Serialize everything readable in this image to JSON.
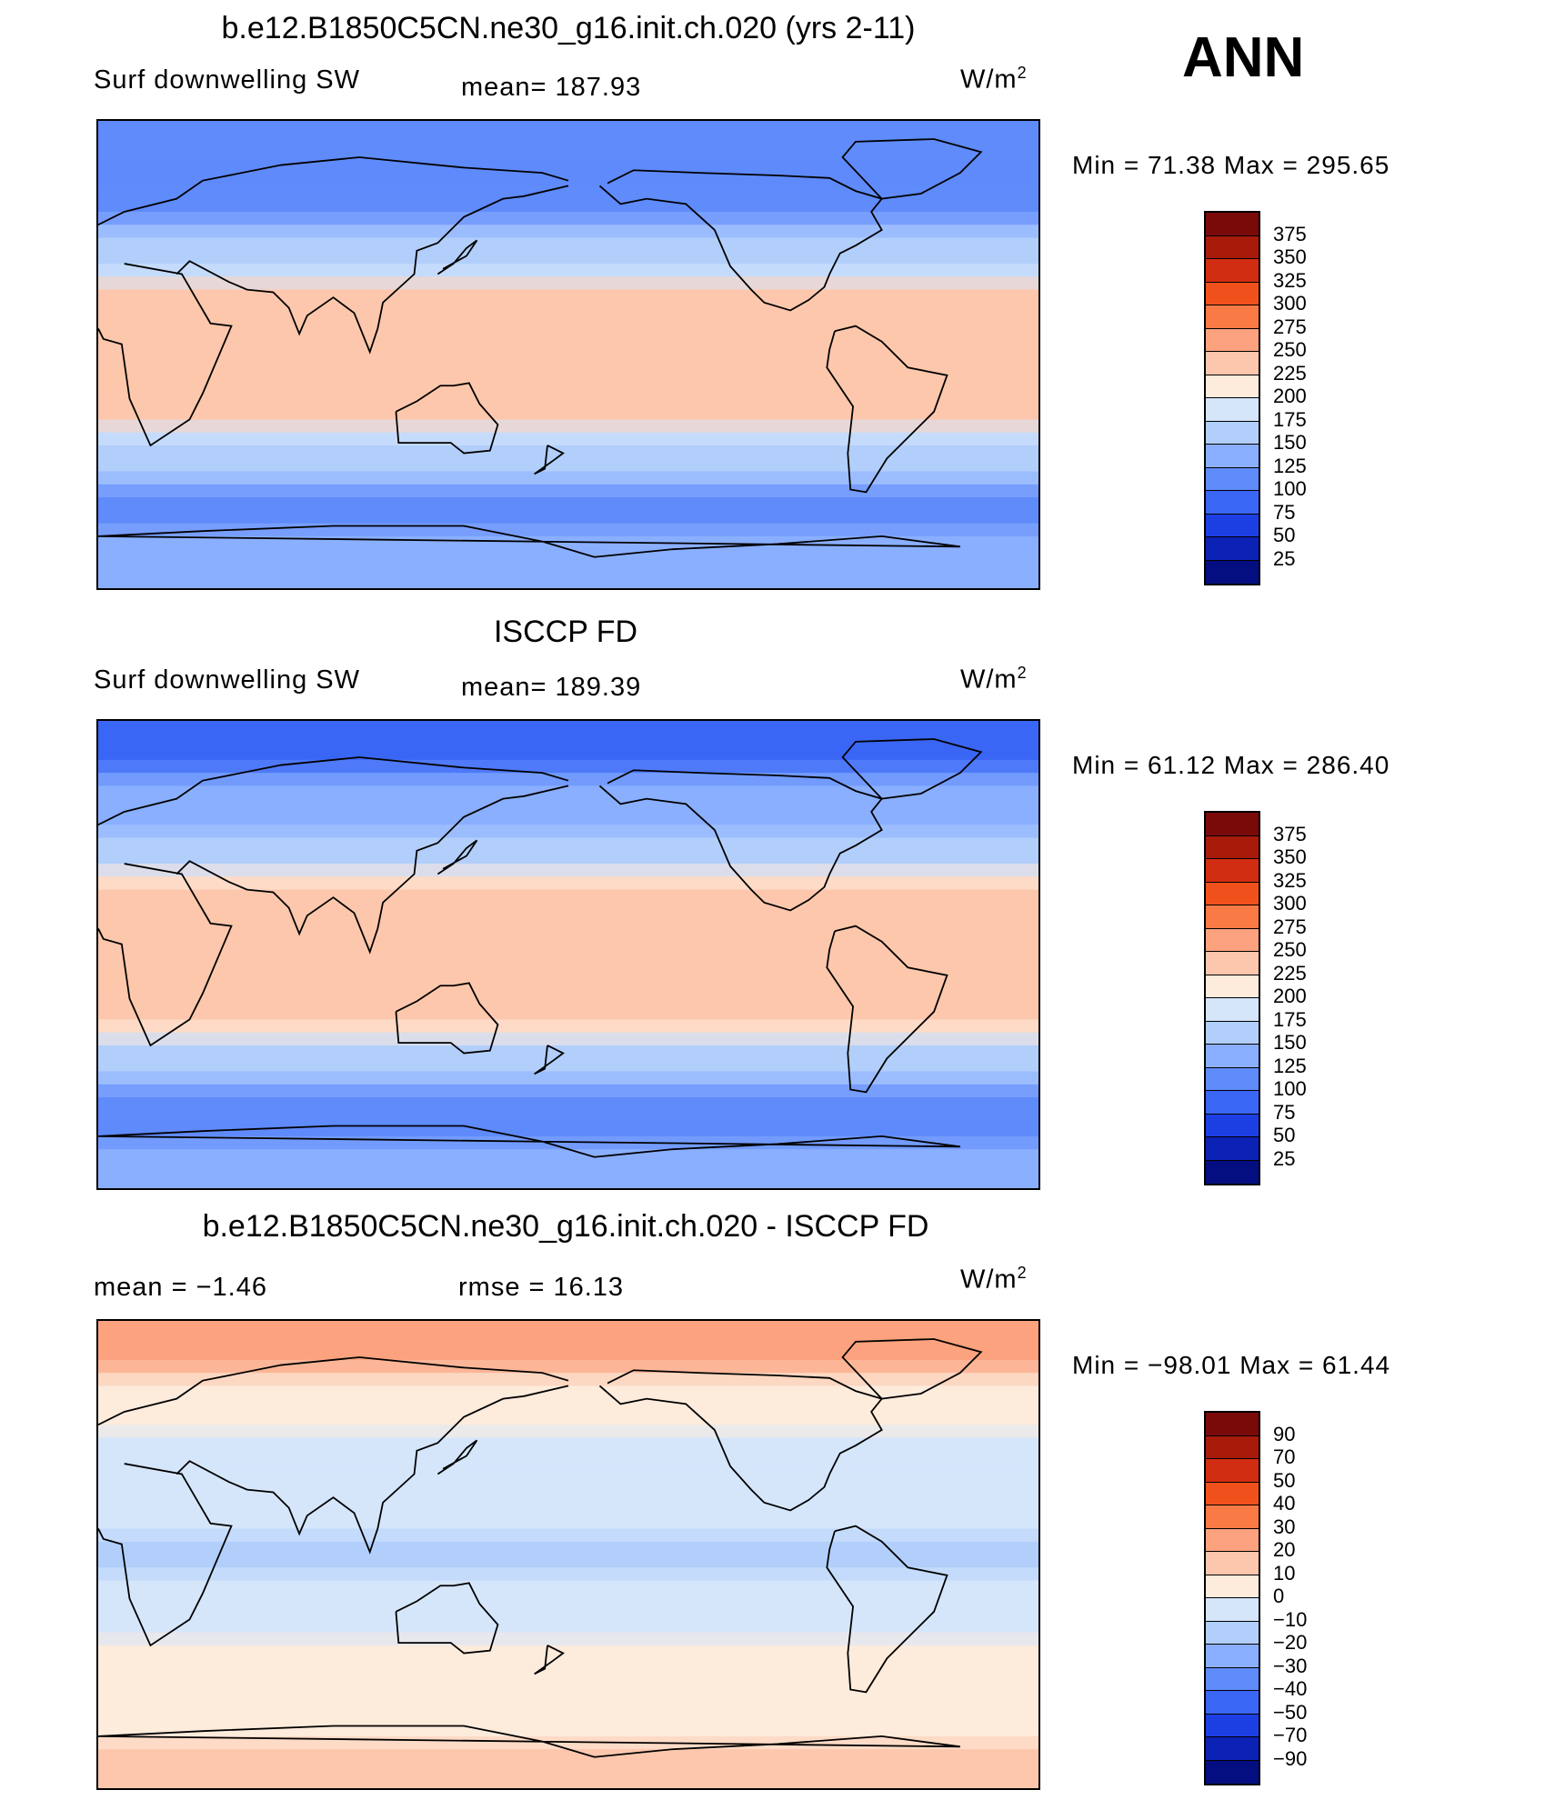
{
  "season": "ANN",
  "panels": [
    {
      "title": "b.e12.B1850C5CN.ne30_g16.init.ch.020 (yrs 2-11)",
      "variable": "Surf  downwelling SW",
      "stat1": "mean=  187.93",
      "stat2": "",
      "units": "W/m",
      "units_sup": "2",
      "minmax": "Min  =    71.38  Max  =  295.65",
      "colorbar": {
        "labels": [
          "375",
          "350",
          "325",
          "300",
          "275",
          "250",
          "225",
          "200",
          "175",
          "150",
          "125",
          "100",
          "75",
          "50",
          "25"
        ],
        "colors": [
          "#7a0a0a",
          "#a81b0b",
          "#d12d12",
          "#f0511c",
          "#fa7a45",
          "#fca27e",
          "#fcc7ac",
          "#fdebdc",
          "#d5e6fb",
          "#b2cffb",
          "#8aafff",
          "#5f8bfb",
          "#3a66f5",
          "#1c3fe3",
          "#0b22b5",
          "#050e80"
        ]
      },
      "chart_data": {
        "type": "heatmap",
        "title": "b.e12.B1850C5CN.ne30_g16.init.ch.020 (yrs 2-11)",
        "variable": "Surf  downwelling SW",
        "units": "W/m2",
        "mean": 187.93,
        "min": 71.38,
        "max": 295.65,
        "contour_levels": [
          25,
          50,
          75,
          100,
          125,
          150,
          175,
          200,
          225,
          250,
          275,
          300,
          325,
          350,
          375
        ],
        "lat_bands": [
          80,
          60,
          40,
          20,
          0,
          -20,
          -40,
          -60,
          -80
        ],
        "zonal_values": [
          110,
          120,
          165,
          230,
          225,
          235,
          160,
          110,
          140
        ]
      }
    },
    {
      "title": "ISCCP FD",
      "variable": "Surf  downwelling SW",
      "stat1": "mean=  189.39",
      "stat2": "",
      "units": "W/m",
      "units_sup": "2",
      "minmax": "Min  =    61.12  Max  =  286.40",
      "colorbar": {
        "labels": [
          "375",
          "350",
          "325",
          "300",
          "275",
          "250",
          "225",
          "200",
          "175",
          "150",
          "125",
          "100",
          "75",
          "50",
          "25"
        ],
        "colors": [
          "#7a0a0a",
          "#a81b0b",
          "#d12d12",
          "#f0511c",
          "#fa7a45",
          "#fca27e",
          "#fcc7ac",
          "#fdebdc",
          "#d5e6fb",
          "#b2cffb",
          "#8aafff",
          "#5f8bfb",
          "#3a66f5",
          "#1c3fe3",
          "#0b22b5",
          "#050e80"
        ]
      },
      "chart_data": {
        "type": "heatmap",
        "title": "ISCCP FD",
        "variable": "Surf  downwelling SW",
        "units": "W/m2",
        "mean": 189.39,
        "min": 61.12,
        "max": 286.4,
        "contour_levels": [
          25,
          50,
          75,
          100,
          125,
          150,
          175,
          200,
          225,
          250,
          275,
          300,
          325,
          350,
          375
        ],
        "lat_bands": [
          80,
          60,
          40,
          20,
          0,
          -20,
          -40,
          -60,
          -80
        ],
        "zonal_values": [
          90,
          125,
          170,
          235,
          240,
          240,
          165,
          105,
          130
        ]
      }
    },
    {
      "title": "b.e12.B1850C5CN.ne30_g16.init.ch.020 - ISCCP FD",
      "variable": "",
      "stat1": "mean  =    −1.46",
      "stat2": "rmse  =    16.13",
      "units": "W/m",
      "units_sup": "2",
      "minmax": "Min  =  −98.01  Max  =    61.44",
      "colorbar": {
        "labels": [
          "90",
          "70",
          "50",
          "40",
          "30",
          "20",
          "10",
          "0",
          "−10",
          "−20",
          "−30",
          "−40",
          "−50",
          "−70",
          "−90"
        ],
        "colors": [
          "#7a0a0a",
          "#a81b0b",
          "#d12d12",
          "#f0511c",
          "#fa7a45",
          "#fca27e",
          "#fcc7ac",
          "#fdebdc",
          "#d5e6fb",
          "#b2cffb",
          "#8aafff",
          "#5f8bfb",
          "#3a66f5",
          "#1c3fe3",
          "#0b22b5",
          "#050e80"
        ]
      },
      "chart_data": {
        "type": "heatmap",
        "title": "b.e12.B1850C5CN.ne30_g16.init.ch.020 - ISCCP FD",
        "units": "W/m2",
        "mean": -1.46,
        "rmse": 16.13,
        "min": -98.01,
        "max": 61.44,
        "contour_levels": [
          -90,
          -70,
          -50,
          -40,
          -30,
          -20,
          -10,
          0,
          10,
          20,
          30,
          40,
          50,
          70,
          90
        ],
        "lat_bands": [
          80,
          60,
          40,
          20,
          0,
          -20,
          -40,
          -60,
          -80
        ],
        "zonal_values": [
          25,
          5,
          -5,
          -5,
          -15,
          -5,
          0,
          5,
          10
        ]
      }
    }
  ]
}
